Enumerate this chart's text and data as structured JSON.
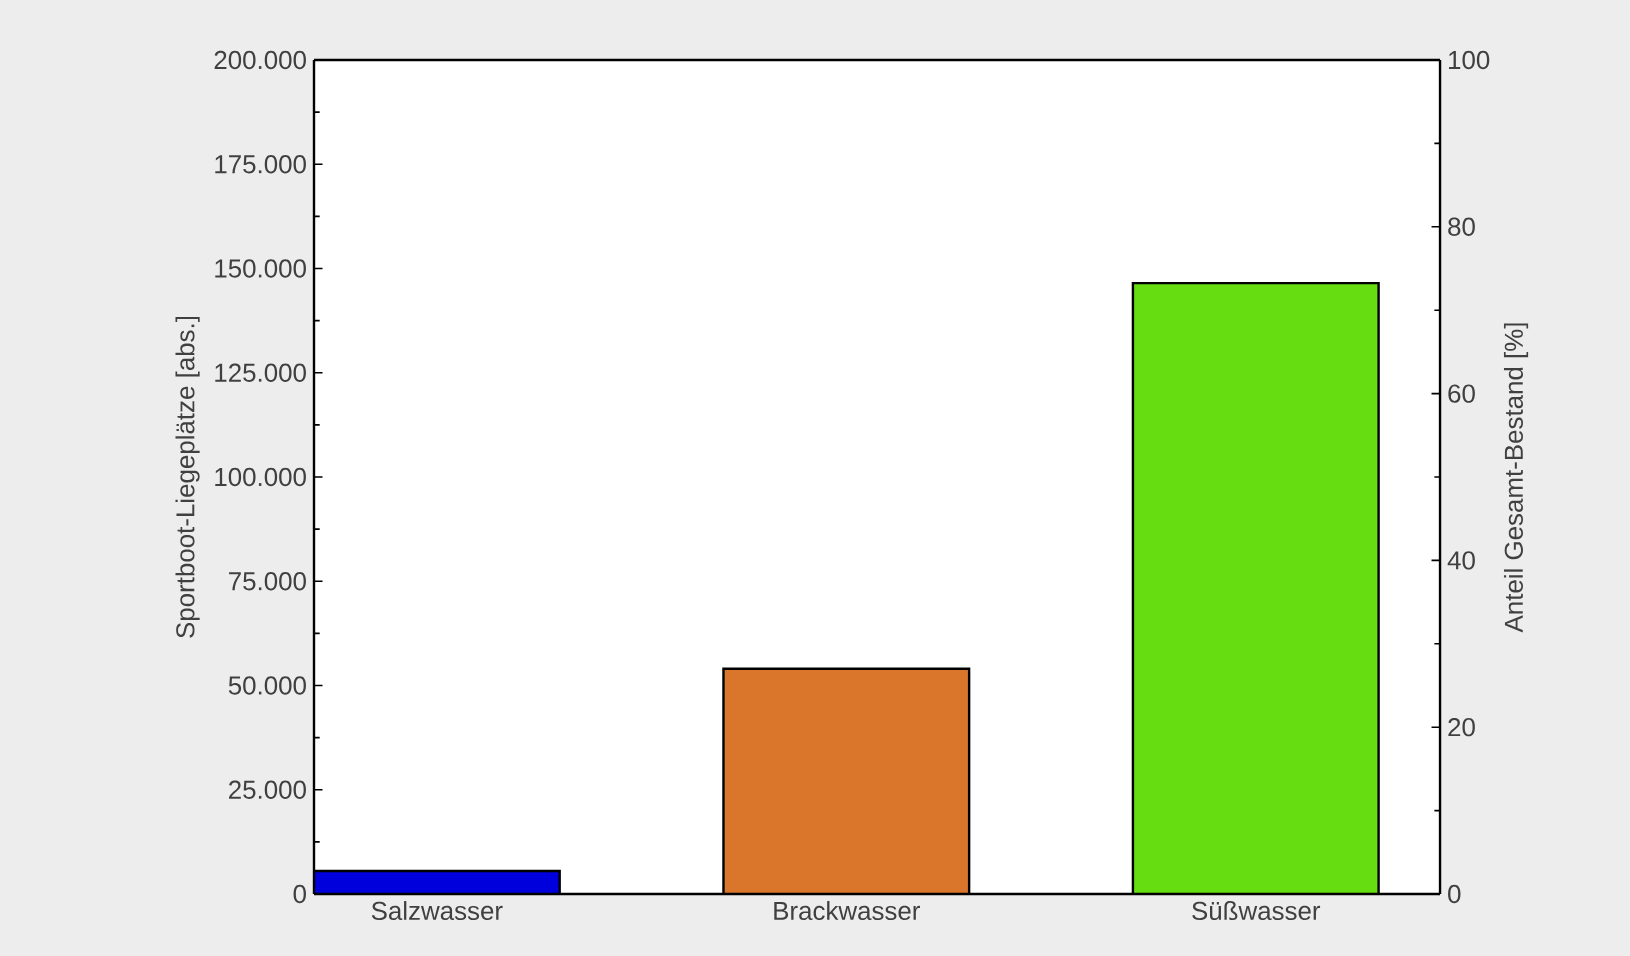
{
  "chart_data": {
    "type": "bar",
    "categories": [
      "Salzwasser",
      "Brackwasser",
      "Süßwasser"
    ],
    "values": [
      5500,
      54000,
      146500
    ],
    "colors": [
      "#0000dd",
      "#d9762b",
      "#66dd11"
    ],
    "ylabel": "Sportboot-Liegeplätze [abs.]",
    "y2label": "Anteil Gesamt-Bestand [%]",
    "ylim": [
      0,
      200000
    ],
    "yticks": [
      0,
      {
        "value": 25000,
        "label": "25.000"
      },
      {
        "value": 50000,
        "label": "50.000"
      },
      {
        "value": 75000,
        "label": "75.000"
      },
      {
        "value": 100000,
        "label": "100.000"
      },
      {
        "value": 125000,
        "label": "125.000"
      },
      {
        "value": 150000,
        "label": "150.000"
      },
      {
        "value": 175000,
        "label": "175.000"
      },
      {
        "value": 200000,
        "label": "200.000"
      }
    ],
    "y2lim": [
      0,
      100
    ],
    "y2ticks": [
      0,
      20,
      40,
      60,
      80,
      100
    ],
    "grid": false
  }
}
